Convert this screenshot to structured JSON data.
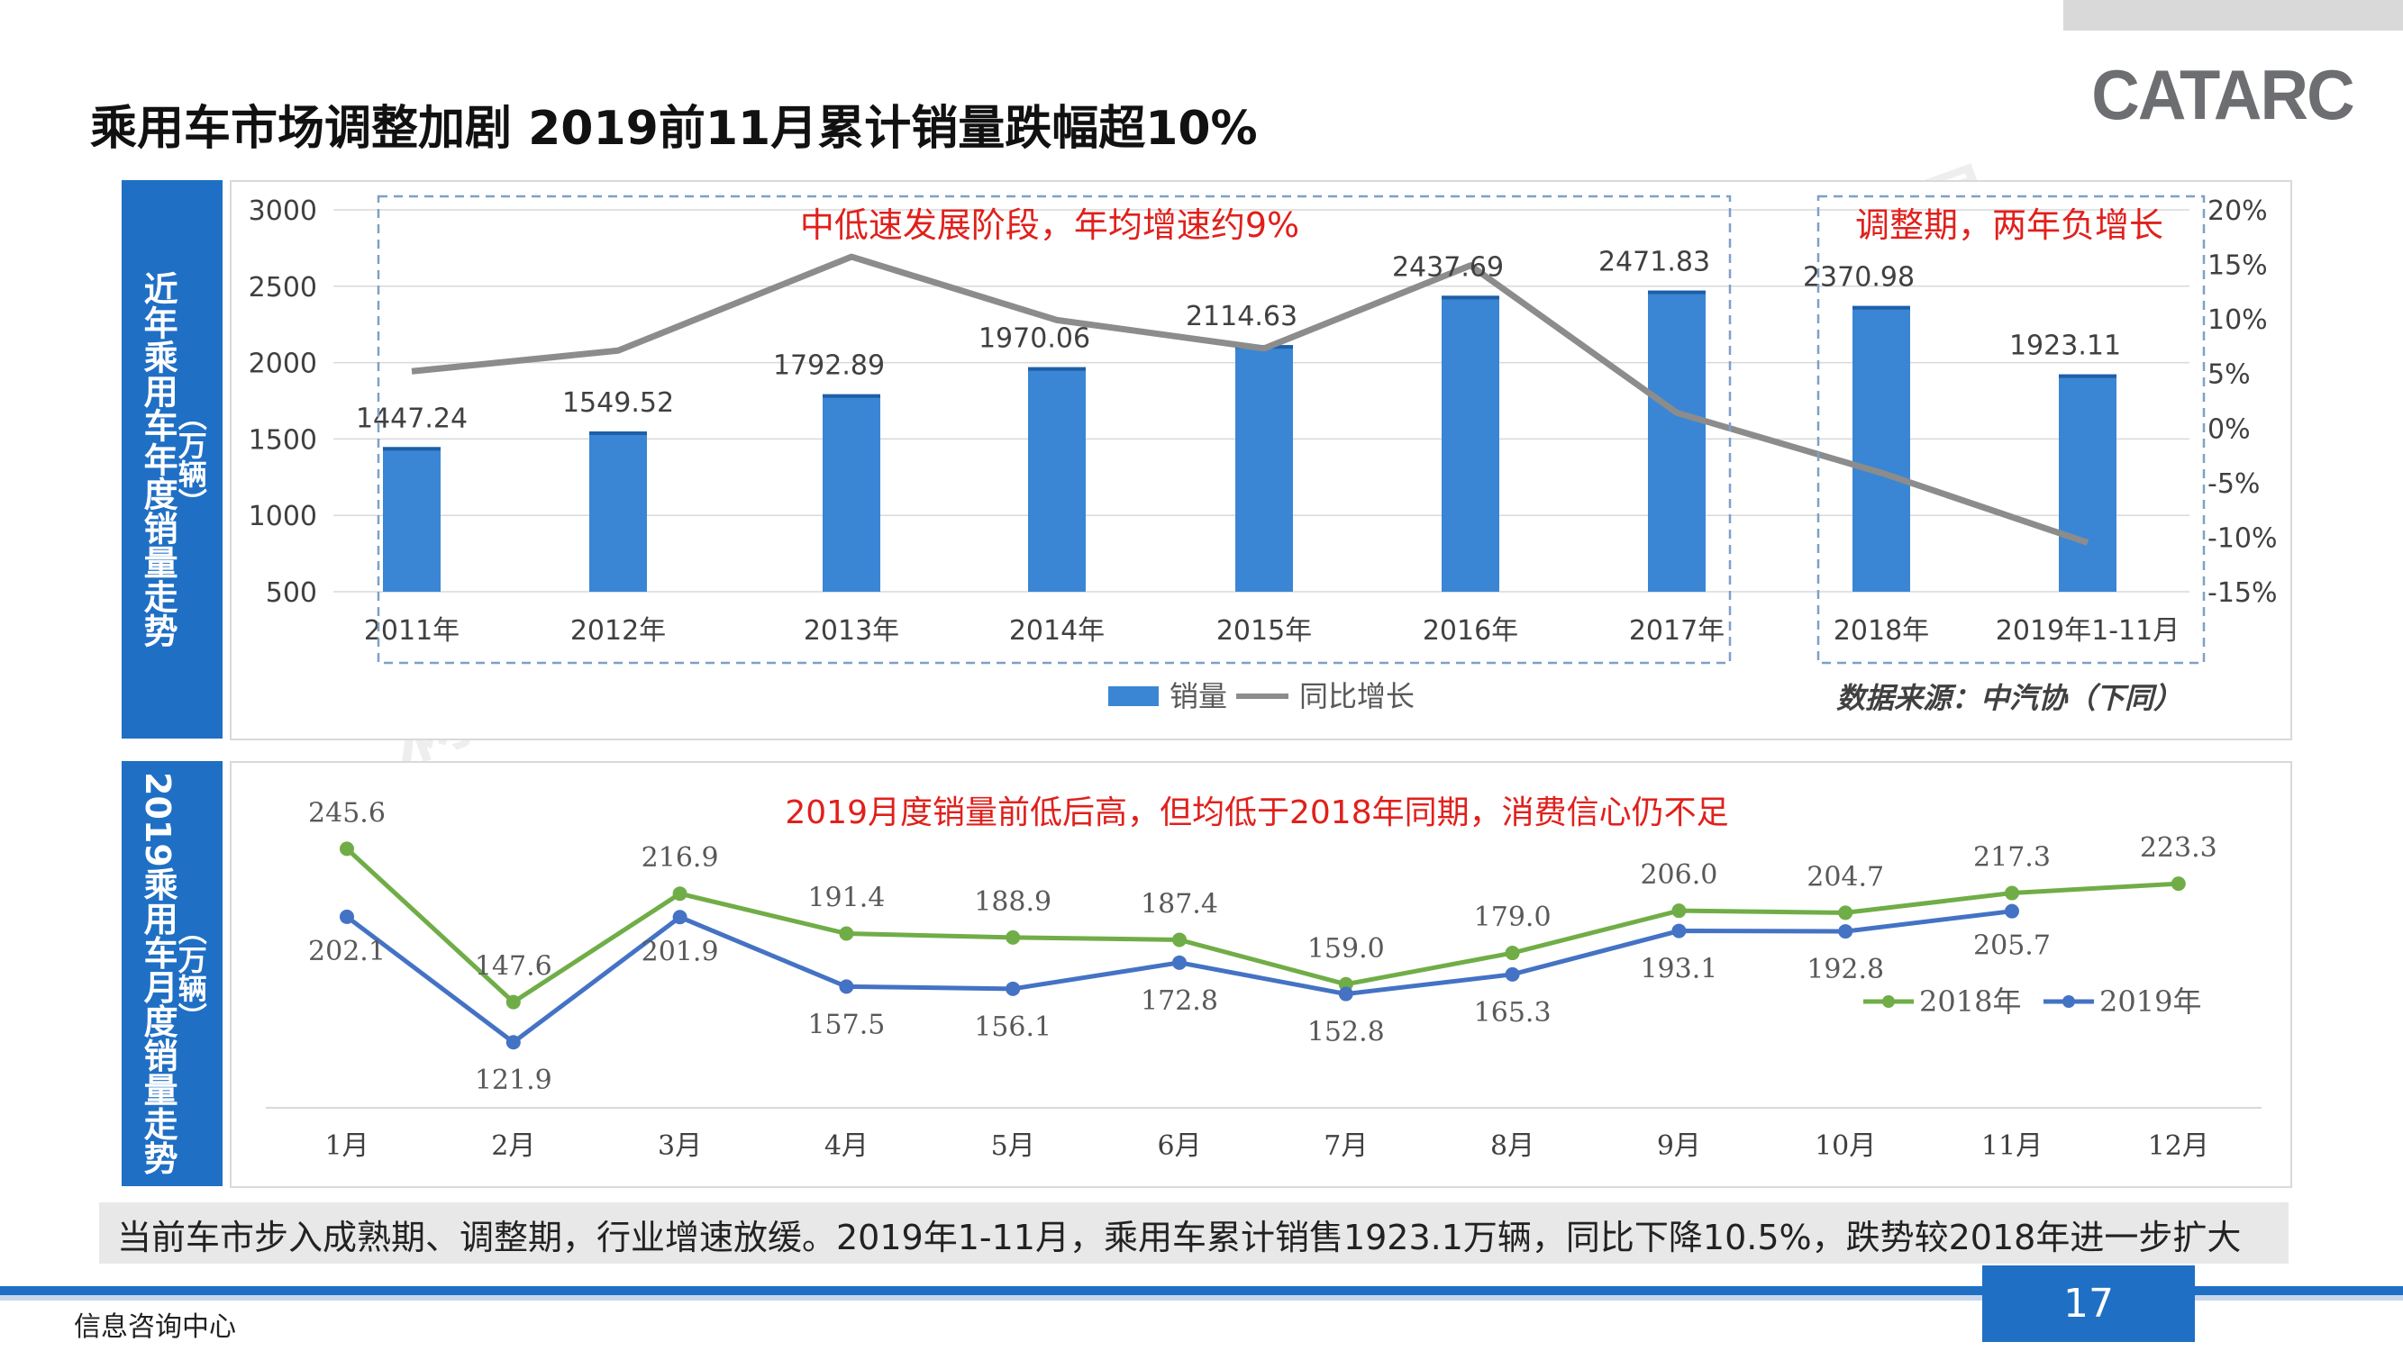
{
  "title": "乘用车市场调整加剧 2019前11月累计销量跌幅超10%",
  "logo_text": "CATARC",
  "watermark": "满天星",
  "annual_panel": {
    "side_label_main": "近年乘用车年度销量走势",
    "side_label_unit": "（万辆）",
    "annotation_growth": "中低速发展阶段，年均增速约9%",
    "annotation_adjust": "调整期，两年负增长",
    "legend_sales": "销量",
    "legend_growth": "同比增长",
    "source": "数据来源：中汽协（下同）"
  },
  "monthly_panel": {
    "side_label_main": "2019乘用车月度销量走势",
    "side_label_unit": "（万辆）",
    "annotation": "2019月度销量前低后高，但均低于2018年同期，消费信心仍不足",
    "legend_2018": "2018年",
    "legend_2019": "2019年"
  },
  "summary": "当前车市步入成熟期、调整期，行业增速放缓。2019年1-11月，乘用车累计销售1923.1万辆，同比下降10.5%，跌势较2018年进一步扩大",
  "footer_left": "信息咨询中心",
  "page_number": "17",
  "colors": {
    "accent": "#1f6fc5",
    "bar": "#3a86d4",
    "line_gray": "#8c8c8c",
    "line_2018": "#70ad47",
    "line_2019": "#4472c4",
    "red": "#e0201c"
  },
  "chart_data": [
    {
      "type": "bar",
      "title": "近年乘用车年度销量走势",
      "categories": [
        "2011年",
        "2012年",
        "2013年",
        "2014年",
        "2015年",
        "2016年",
        "2017年",
        "2018年",
        "2019年1-11月"
      ],
      "series": [
        {
          "name": "销量",
          "axis": "left",
          "values": [
            1447.24,
            1549.52,
            1792.89,
            1970.06,
            2114.63,
            2437.69,
            2471.83,
            2370.98,
            1923.11
          ]
        },
        {
          "name": "同比增长",
          "type": "line",
          "axis": "right",
          "unit": "%",
          "values": [
            5.2,
            7.1,
            15.7,
            9.9,
            7.3,
            14.9,
            1.4,
            -4.1,
            -10.5
          ]
        }
      ],
      "ylim": [
        500,
        3000
      ],
      "yticks": [
        500,
        1000,
        1500,
        2000,
        2500,
        3000
      ],
      "y2lim": [
        -15,
        20
      ],
      "y2ticks": [
        "20%",
        "15%",
        "10%",
        "5%",
        "0%",
        "-5%",
        "-10%",
        "-15%"
      ],
      "legend": "bottom-center"
    },
    {
      "type": "line",
      "title": "2019乘用车月度销量走势",
      "categories": [
        "1月",
        "2月",
        "3月",
        "4月",
        "5月",
        "6月",
        "7月",
        "8月",
        "9月",
        "10月",
        "11月",
        "12月"
      ],
      "series": [
        {
          "name": "2018年",
          "values": [
            245.6,
            147.6,
            216.9,
            191.4,
            188.9,
            187.4,
            159.0,
            179.0,
            206.0,
            204.7,
            217.3,
            223.3
          ]
        },
        {
          "name": "2019年",
          "values": [
            202.1,
            121.9,
            201.9,
            157.5,
            156.1,
            172.8,
            152.8,
            165.3,
            193.1,
            192.8,
            205.7,
            null
          ]
        }
      ],
      "ylim": [
        80,
        270
      ],
      "legend": "right"
    }
  ]
}
